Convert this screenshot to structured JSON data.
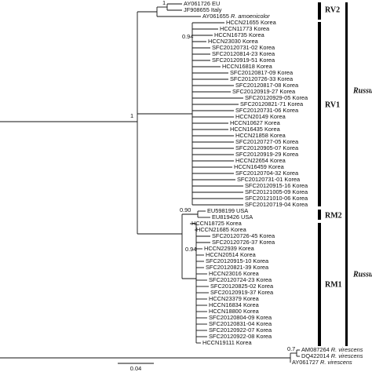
{
  "leaves": [
    "AY061726 EU",
    "JF908655 Italy",
    {
      "id": "AY061655",
      "species": "R. amoenicolor"
    },
    "HCCN21655 Korea",
    "HCCN11773 Korea",
    "HCCN16735 Korea",
    "HCCN23030 Korea",
    "SFC20120731-02 Korea",
    "SFC20120814-23 Korea",
    "SFC20120919-51 Korea",
    "HCCN16818 Korea",
    "SFC20120817-09 Korea",
    "SFC20120726-33 Korea",
    "SFC20120817-08 Korea",
    "SFC20120919-27 Korea",
    "SFC20120929-05 Korea",
    "SFC20120821-71 Korea",
    "SFC20120731-06 Korea",
    "HCCN20149 Korea",
    "HCCN10627 Korea",
    "HCCN16435 Korea",
    "HCCN21858 Korea",
    "SFC20120727-05 Korea",
    "SFC20120905-07 Korea",
    "SFC20120919-29 Korea",
    "HCCN22654 Korea",
    "HCCN16459 Korea",
    "SFC20120704-32 Korea",
    "SFC20120731-01 Korea",
    "SFC20120915-16 Korea",
    "SFC20121005-09 Korea",
    "SFC20121010-06 Korea",
    "SFC20120719-04 Korea",
    "EU598199 USA",
    "EU819426 USA",
    "HCCN18725 Korea",
    "HCCN21685 Korea",
    "SFC20120726-45 Korea",
    "SFC20120726-37 Korea",
    "HCCN22939 Korea",
    "HCCN20514 Korea",
    "SFC20120915-10 Korea",
    "SFC20120821-39 Korea",
    "HCCN23016 Korea",
    "SFC20120724-23 Korea",
    "SFC20120825-02 Korea",
    "SFC20120919-37 Korea",
    "HCCN23379 Korea",
    "HCCN16834 Korea",
    "HCCN18800 Korea",
    "SFC20120804-09 Korea",
    "SFC20120831-04 Korea",
    "SFC20120922-07 Korea",
    "SFC20120922-08 Korea",
    "HCCN19111 Korea",
    {
      "id": "AM087264",
      "species": "R. virescens"
    },
    {
      "id": "DQ422014",
      "species": "R. virescens"
    },
    {
      "id": "AY061727",
      "species": "R. virescens"
    }
  ],
  "support": [
    "1",
    "0.94",
    "1",
    "0.90",
    "0.94",
    "0.7"
  ],
  "clades": [
    "RV2",
    "RV1",
    "RM2",
    "RM1"
  ],
  "genus": [
    "Russu",
    "Russu"
  ],
  "scale": "0.04"
}
